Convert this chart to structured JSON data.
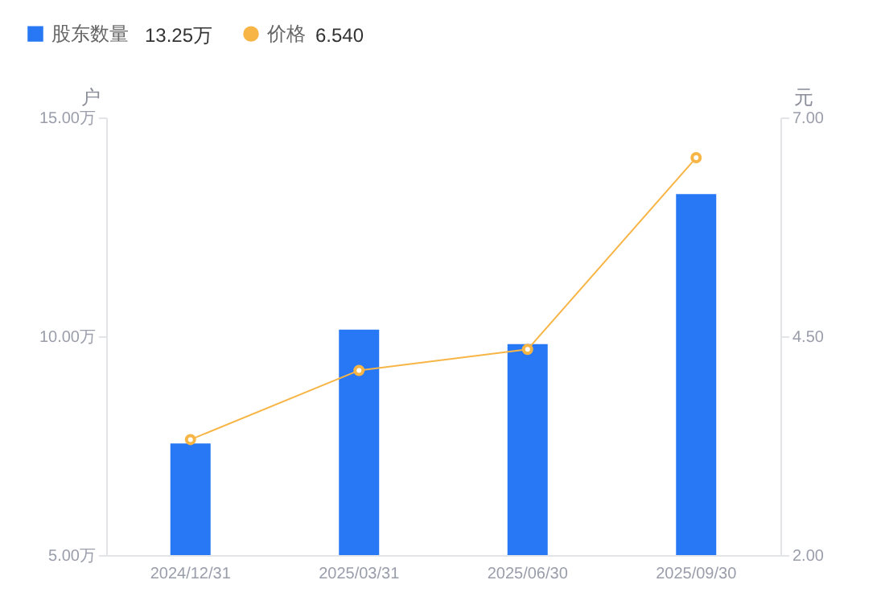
{
  "chart_data": {
    "type": "bar",
    "categories": [
      "2024/12/31",
      "2025/03/31",
      "2025/06/30",
      "2025/09/30"
    ],
    "series": [
      {
        "name": "股东数量",
        "color": "#2878f5",
        "values": [
          7.55,
          10.15,
          9.82,
          13.25
        ]
      },
      {
        "name": "价格",
        "type": "line",
        "axis": "y2",
        "color": "#f7b546",
        "values": [
          3.32,
          4.11,
          4.35,
          6.54
        ]
      }
    ],
    "ylabel": "户",
    "y2label": "元",
    "ylim": [
      5,
      15
    ],
    "yticks": [
      {
        "value": 5,
        "label": "5.00万"
      },
      {
        "value": 10,
        "label": "10.00万"
      },
      {
        "value": 15,
        "label": "15.00万"
      }
    ],
    "y2lim": [
      2,
      7
    ],
    "y2ticks": [
      {
        "value": 2,
        "label": "2.00"
      },
      {
        "value": 4.5,
        "label": "4.50"
      },
      {
        "value": 7,
        "label": "7.00"
      }
    ],
    "annotations": [
      "13.25万",
      "6.540"
    ],
    "legend": "top left",
    "marker": "circle",
    "grid": false
  }
}
